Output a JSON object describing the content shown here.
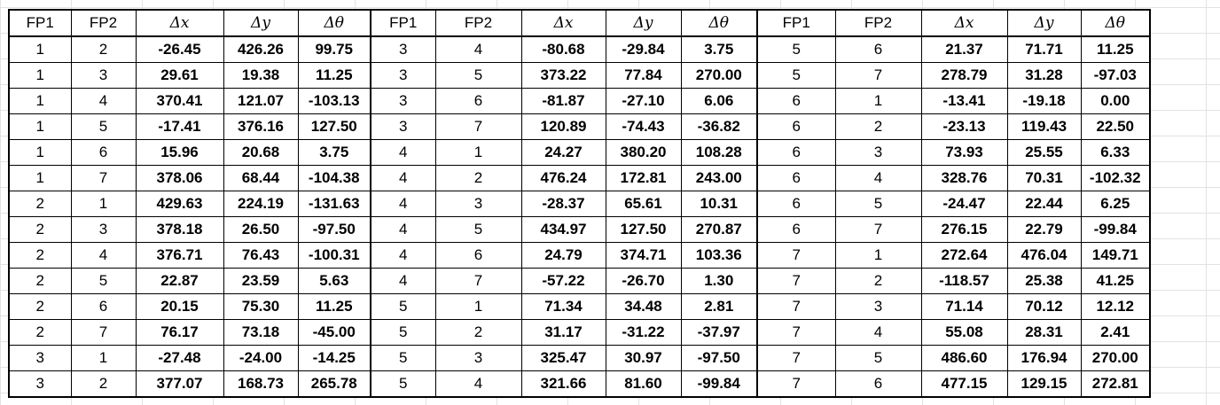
{
  "headers": [
    "FP1",
    "FP2",
    "Δx",
    "Δy",
    "Δθ"
  ],
  "rows": [
    [
      [
        "1",
        "2",
        "-26.45",
        "426.26",
        "99.75"
      ],
      [
        "3",
        "4",
        "-80.68",
        "-29.84",
        "3.75"
      ],
      [
        "5",
        "6",
        "21.37",
        "71.71",
        "11.25"
      ]
    ],
    [
      [
        "1",
        "3",
        "29.61",
        "19.38",
        "11.25"
      ],
      [
        "3",
        "5",
        "373.22",
        "77.84",
        "270.00"
      ],
      [
        "5",
        "7",
        "278.79",
        "31.28",
        "-97.03"
      ]
    ],
    [
      [
        "1",
        "4",
        "370.41",
        "121.07",
        "-103.13"
      ],
      [
        "3",
        "6",
        "-81.87",
        "-27.10",
        "6.06"
      ],
      [
        "6",
        "1",
        "-13.41",
        "-19.18",
        "0.00"
      ]
    ],
    [
      [
        "1",
        "5",
        "-17.41",
        "376.16",
        "127.50"
      ],
      [
        "3",
        "7",
        "120.89",
        "-74.43",
        "-36.82"
      ],
      [
        "6",
        "2",
        "-23.13",
        "119.43",
        "22.50"
      ]
    ],
    [
      [
        "1",
        "6",
        "15.96",
        "20.68",
        "3.75"
      ],
      [
        "4",
        "1",
        "24.27",
        "380.20",
        "108.28"
      ],
      [
        "6",
        "3",
        "73.93",
        "25.55",
        "6.33"
      ]
    ],
    [
      [
        "1",
        "7",
        "378.06",
        "68.44",
        "-104.38"
      ],
      [
        "4",
        "2",
        "476.24",
        "172.81",
        "243.00"
      ],
      [
        "6",
        "4",
        "328.76",
        "70.31",
        "-102.32"
      ]
    ],
    [
      [
        "2",
        "1",
        "429.63",
        "224.19",
        "-131.63"
      ],
      [
        "4",
        "3",
        "-28.37",
        "65.61",
        "10.31"
      ],
      [
        "6",
        "5",
        "-24.47",
        "22.44",
        "6.25"
      ]
    ],
    [
      [
        "2",
        "3",
        "378.18",
        "26.50",
        "-97.50"
      ],
      [
        "4",
        "5",
        "434.97",
        "127.50",
        "270.87"
      ],
      [
        "6",
        "7",
        "276.15",
        "22.79",
        "-99.84"
      ]
    ],
    [
      [
        "2",
        "4",
        "376.71",
        "76.43",
        "-100.31"
      ],
      [
        "4",
        "6",
        "24.79",
        "374.71",
        "103.36"
      ],
      [
        "7",
        "1",
        "272.64",
        "476.04",
        "149.71"
      ]
    ],
    [
      [
        "2",
        "5",
        "22.87",
        "23.59",
        "5.63"
      ],
      [
        "4",
        "7",
        "-57.22",
        "-26.70",
        "1.30"
      ],
      [
        "7",
        "2",
        "-118.57",
        "25.38",
        "41.25"
      ]
    ],
    [
      [
        "2",
        "6",
        "20.15",
        "75.30",
        "11.25"
      ],
      [
        "5",
        "1",
        "71.34",
        "34.48",
        "2.81"
      ],
      [
        "7",
        "3",
        "71.14",
        "70.12",
        "12.12"
      ]
    ],
    [
      [
        "2",
        "7",
        "76.17",
        "73.18",
        "-45.00"
      ],
      [
        "5",
        "2",
        "31.17",
        "-31.22",
        "-37.97"
      ],
      [
        "7",
        "4",
        "55.08",
        "28.31",
        "2.41"
      ]
    ],
    [
      [
        "3",
        "1",
        "-27.48",
        "-24.00",
        "-14.25"
      ],
      [
        "5",
        "3",
        "325.47",
        "30.97",
        "-97.50"
      ],
      [
        "7",
        "5",
        "486.60",
        "176.94",
        "270.00"
      ]
    ],
    [
      [
        "3",
        "2",
        "377.07",
        "168.73",
        "265.78"
      ],
      [
        "5",
        "4",
        "321.66",
        "81.60",
        "-99.84"
      ],
      [
        "7",
        "6",
        "477.15",
        "129.15",
        "272.81"
      ]
    ]
  ]
}
